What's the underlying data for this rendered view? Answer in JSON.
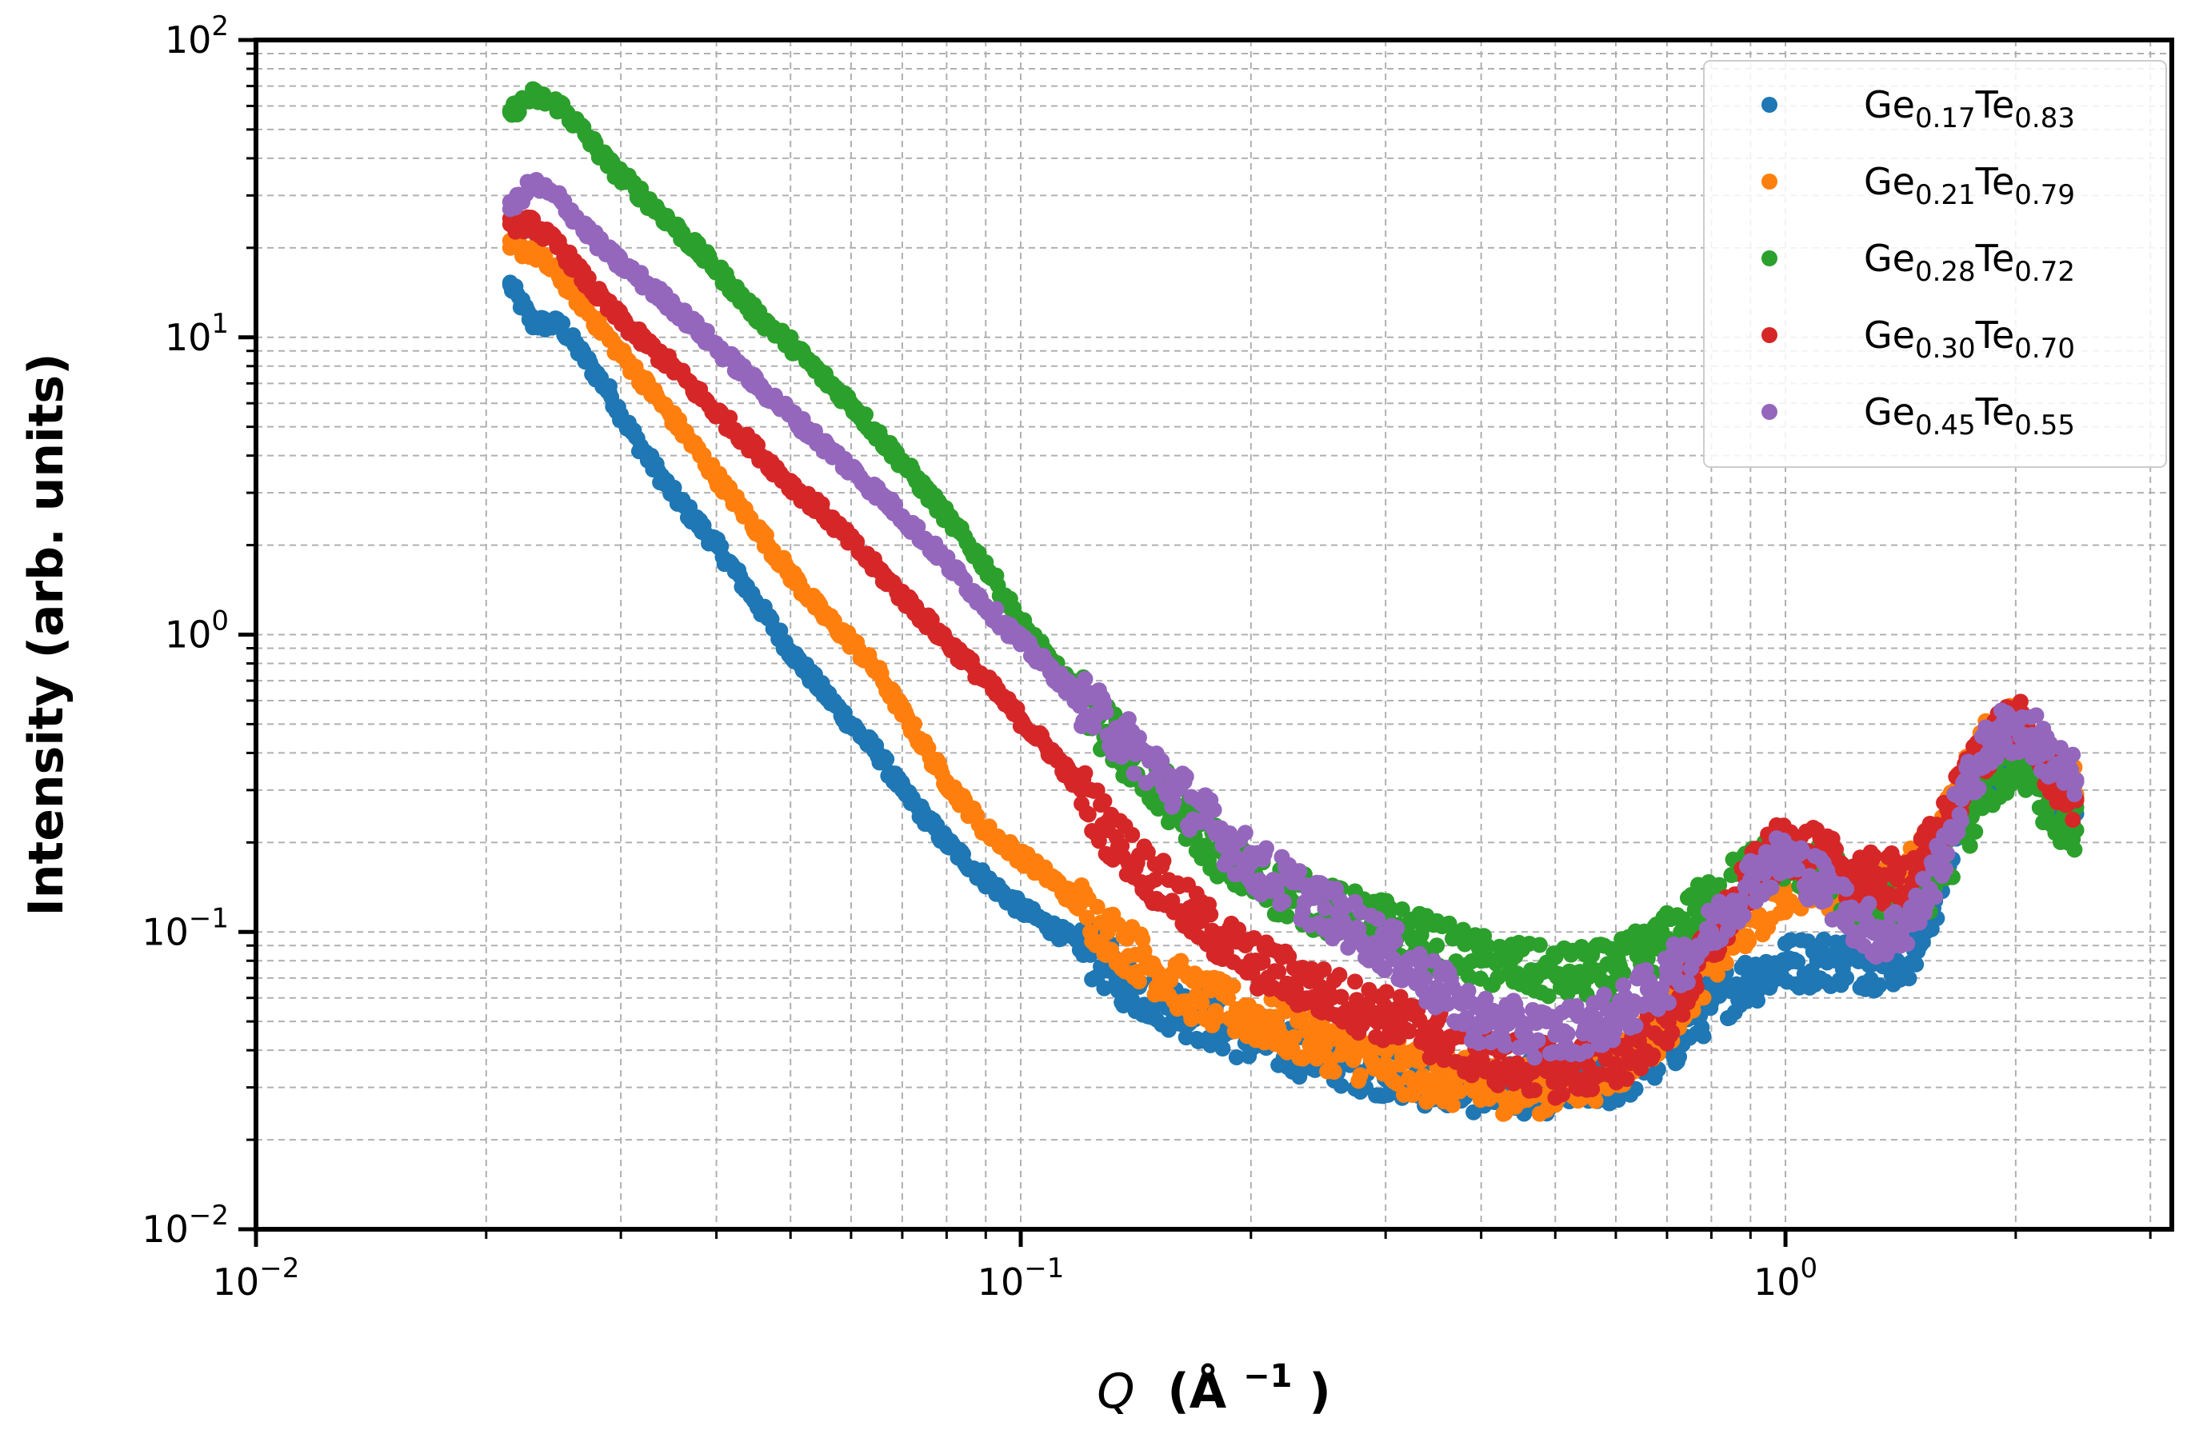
{
  "chart_data": {
    "type": "scatter",
    "x_scale": "log",
    "y_scale": "log",
    "xlim": [
      0.01,
      3.2
    ],
    "ylim": [
      0.01,
      100
    ],
    "grid": true,
    "legend_position": "top-right",
    "xlabel": {
      "symbol": "Q",
      "unit": "(Å",
      "sup": "−1",
      "close": ")"
    },
    "ylabel": "Intensity (arb. units)",
    "x_ticks": [
      {
        "value": 0.01,
        "base": "10",
        "exp": "−2"
      },
      {
        "value": 0.1,
        "base": "10",
        "exp": "−1"
      },
      {
        "value": 1,
        "base": "10",
        "exp": "0"
      }
    ],
    "y_ticks": [
      {
        "value": 0.01,
        "base": "10",
        "exp": "−2"
      },
      {
        "value": 0.1,
        "base": "10",
        "exp": "−1"
      },
      {
        "value": 1,
        "base": "10",
        "exp": "0"
      },
      {
        "value": 10,
        "base": "10",
        "exp": "1"
      },
      {
        "value": 100,
        "base": "10",
        "exp": "2"
      }
    ],
    "series": [
      {
        "legend": {
          "a": "Ge",
          "as": "0.17",
          "b": "Te",
          "bs": "0.83"
        },
        "color": "#1f77b4",
        "points": [
          [
            0.0215,
            15
          ],
          [
            0.023,
            11.2
          ],
          [
            0.025,
            11
          ],
          [
            0.027,
            8.4
          ],
          [
            0.029,
            6.5
          ],
          [
            0.03,
            5.5
          ],
          [
            0.032,
            4.2
          ],
          [
            0.035,
            3.0
          ],
          [
            0.04,
            2.0
          ],
          [
            0.045,
            1.3
          ],
          [
            0.05,
            0.88
          ],
          [
            0.055,
            0.65
          ],
          [
            0.06,
            0.5
          ],
          [
            0.065,
            0.4
          ],
          [
            0.07,
            0.3
          ],
          [
            0.08,
            0.2
          ],
          [
            0.09,
            0.15
          ],
          [
            0.1,
            0.12
          ],
          [
            0.12,
            0.09
          ],
          [
            0.14,
            0.065
          ],
          [
            0.17,
            0.052
          ],
          [
            0.2,
            0.044
          ],
          [
            0.25,
            0.038
          ],
          [
            0.3,
            0.034
          ],
          [
            0.35,
            0.031
          ],
          [
            0.4,
            0.03
          ],
          [
            0.5,
            0.03
          ],
          [
            0.6,
            0.032
          ],
          [
            0.7,
            0.04
          ],
          [
            0.8,
            0.058
          ],
          [
            0.9,
            0.07
          ],
          [
            1.0,
            0.078
          ],
          [
            1.1,
            0.08
          ],
          [
            1.2,
            0.08
          ],
          [
            1.3,
            0.078
          ],
          [
            1.4,
            0.08
          ],
          [
            1.5,
            0.09
          ],
          [
            1.6,
            0.15
          ],
          [
            1.7,
            0.25
          ],
          [
            1.8,
            0.32
          ],
          [
            1.9,
            0.37
          ],
          [
            2.0,
            0.4
          ],
          [
            2.1,
            0.38
          ],
          [
            2.2,
            0.32
          ],
          [
            2.3,
            0.28
          ],
          [
            2.4,
            0.25
          ]
        ]
      },
      {
        "legend": {
          "a": "Ge",
          "as": "0.21",
          "b": "Te",
          "bs": "0.79"
        },
        "color": "#ff7f0e",
        "points": [
          [
            0.0215,
            20
          ],
          [
            0.023,
            19.5
          ],
          [
            0.025,
            16
          ],
          [
            0.027,
            12.5
          ],
          [
            0.029,
            9.8
          ],
          [
            0.032,
            7.2
          ],
          [
            0.035,
            5.4
          ],
          [
            0.04,
            3.4
          ],
          [
            0.045,
            2.3
          ],
          [
            0.05,
            1.6
          ],
          [
            0.055,
            1.18
          ],
          [
            0.06,
            0.95
          ],
          [
            0.065,
            0.75
          ],
          [
            0.07,
            0.55
          ],
          [
            0.08,
            0.32
          ],
          [
            0.09,
            0.22
          ],
          [
            0.1,
            0.18
          ],
          [
            0.11,
            0.15
          ],
          [
            0.13,
            0.1
          ],
          [
            0.15,
            0.075
          ],
          [
            0.17,
            0.06
          ],
          [
            0.2,
            0.052
          ],
          [
            0.25,
            0.042
          ],
          [
            0.3,
            0.036
          ],
          [
            0.35,
            0.032
          ],
          [
            0.4,
            0.03
          ],
          [
            0.5,
            0.03
          ],
          [
            0.6,
            0.035
          ],
          [
            0.7,
            0.05
          ],
          [
            0.8,
            0.08
          ],
          [
            0.9,
            0.11
          ],
          [
            1.0,
            0.14
          ],
          [
            1.1,
            0.15
          ],
          [
            1.2,
            0.14
          ],
          [
            1.3,
            0.13
          ],
          [
            1.4,
            0.14
          ],
          [
            1.5,
            0.17
          ],
          [
            1.6,
            0.22
          ],
          [
            1.7,
            0.3
          ],
          [
            1.8,
            0.4
          ],
          [
            1.9,
            0.47
          ],
          [
            2.0,
            0.5
          ],
          [
            2.1,
            0.46
          ],
          [
            2.2,
            0.38
          ],
          [
            2.3,
            0.32
          ],
          [
            2.4,
            0.29
          ]
        ]
      },
      {
        "legend": {
          "a": "Ge",
          "as": "0.28",
          "b": "Te",
          "bs": "0.72"
        },
        "color": "#2ca02c",
        "points": [
          [
            0.0215,
            57
          ],
          [
            0.023,
            65
          ],
          [
            0.025,
            60
          ],
          [
            0.027,
            48
          ],
          [
            0.029,
            38
          ],
          [
            0.032,
            30
          ],
          [
            0.035,
            24
          ],
          [
            0.04,
            17
          ],
          [
            0.045,
            12
          ],
          [
            0.05,
            9.5
          ],
          [
            0.055,
            7.4
          ],
          [
            0.06,
            6.0
          ],
          [
            0.065,
            4.7
          ],
          [
            0.07,
            3.8
          ],
          [
            0.08,
            2.5
          ],
          [
            0.09,
            1.7
          ],
          [
            0.1,
            1.1
          ],
          [
            0.11,
            0.8
          ],
          [
            0.12,
            0.6
          ],
          [
            0.14,
            0.38
          ],
          [
            0.16,
            0.26
          ],
          [
            0.18,
            0.19
          ],
          [
            0.2,
            0.15
          ],
          [
            0.25,
            0.12
          ],
          [
            0.3,
            0.105
          ],
          [
            0.35,
            0.09
          ],
          [
            0.4,
            0.08
          ],
          [
            0.5,
            0.072
          ],
          [
            0.6,
            0.075
          ],
          [
            0.7,
            0.095
          ],
          [
            0.8,
            0.13
          ],
          [
            0.9,
            0.16
          ],
          [
            1.0,
            0.18
          ],
          [
            1.1,
            0.16
          ],
          [
            1.2,
            0.14
          ],
          [
            1.3,
            0.12
          ],
          [
            1.4,
            0.12
          ],
          [
            1.5,
            0.13
          ],
          [
            1.6,
            0.16
          ],
          [
            1.7,
            0.21
          ],
          [
            1.8,
            0.28
          ],
          [
            1.9,
            0.34
          ],
          [
            2.0,
            0.37
          ],
          [
            2.1,
            0.33
          ],
          [
            2.2,
            0.27
          ],
          [
            2.3,
            0.24
          ],
          [
            2.4,
            0.22
          ]
        ]
      },
      {
        "legend": {
          "a": "Ge",
          "as": "0.30",
          "b": "Te",
          "bs": "0.70"
        },
        "color": "#d62728",
        "points": [
          [
            0.0215,
            24
          ],
          [
            0.023,
            24
          ],
          [
            0.025,
            20
          ],
          [
            0.027,
            15.5
          ],
          [
            0.029,
            12.5
          ],
          [
            0.032,
            9.8
          ],
          [
            0.035,
            8.0
          ],
          [
            0.04,
            5.6
          ],
          [
            0.045,
            4.2
          ],
          [
            0.05,
            3.2
          ],
          [
            0.055,
            2.6
          ],
          [
            0.06,
            2.05
          ],
          [
            0.065,
            1.65
          ],
          [
            0.07,
            1.35
          ],
          [
            0.08,
            0.95
          ],
          [
            0.09,
            0.7
          ],
          [
            0.1,
            0.52
          ],
          [
            0.11,
            0.4
          ],
          [
            0.12,
            0.3
          ],
          [
            0.13,
            0.22
          ],
          [
            0.15,
            0.15
          ],
          [
            0.17,
            0.11
          ],
          [
            0.2,
            0.08
          ],
          [
            0.25,
            0.062
          ],
          [
            0.3,
            0.052
          ],
          [
            0.35,
            0.045
          ],
          [
            0.4,
            0.038
          ],
          [
            0.5,
            0.034
          ],
          [
            0.6,
            0.036
          ],
          [
            0.7,
            0.05
          ],
          [
            0.8,
            0.09
          ],
          [
            0.9,
            0.15
          ],
          [
            1.0,
            0.2
          ],
          [
            1.1,
            0.18
          ],
          [
            1.2,
            0.16
          ],
          [
            1.3,
            0.15
          ],
          [
            1.4,
            0.15
          ],
          [
            1.5,
            0.17
          ],
          [
            1.6,
            0.22
          ],
          [
            1.7,
            0.3
          ],
          [
            1.8,
            0.4
          ],
          [
            1.9,
            0.47
          ],
          [
            2.0,
            0.5
          ],
          [
            2.1,
            0.45
          ],
          [
            2.2,
            0.36
          ],
          [
            2.3,
            0.31
          ],
          [
            2.4,
            0.28
          ]
        ]
      },
      {
        "legend": {
          "a": "Ge",
          "as": "0.45",
          "b": "Te",
          "bs": "0.55"
        },
        "color": "#9467bd",
        "points": [
          [
            0.0215,
            27
          ],
          [
            0.023,
            33
          ],
          [
            0.025,
            29
          ],
          [
            0.027,
            23
          ],
          [
            0.029,
            19
          ],
          [
            0.032,
            15.5
          ],
          [
            0.035,
            12.8
          ],
          [
            0.04,
            9.3
          ],
          [
            0.045,
            7.0
          ],
          [
            0.05,
            5.5
          ],
          [
            0.055,
            4.4
          ],
          [
            0.06,
            3.6
          ],
          [
            0.065,
            3.0
          ],
          [
            0.07,
            2.5
          ],
          [
            0.08,
            1.75
          ],
          [
            0.09,
            1.25
          ],
          [
            0.1,
            0.95
          ],
          [
            0.11,
            0.75
          ],
          [
            0.12,
            0.6
          ],
          [
            0.14,
            0.42
          ],
          [
            0.16,
            0.3
          ],
          [
            0.18,
            0.22
          ],
          [
            0.2,
            0.17
          ],
          [
            0.25,
            0.12
          ],
          [
            0.3,
            0.09
          ],
          [
            0.35,
            0.065
          ],
          [
            0.4,
            0.05
          ],
          [
            0.5,
            0.045
          ],
          [
            0.6,
            0.052
          ],
          [
            0.7,
            0.07
          ],
          [
            0.8,
            0.1
          ],
          [
            0.9,
            0.15
          ],
          [
            1.0,
            0.18
          ],
          [
            1.1,
            0.15
          ],
          [
            1.2,
            0.12
          ],
          [
            1.3,
            0.1
          ],
          [
            1.4,
            0.1
          ],
          [
            1.5,
            0.12
          ],
          [
            1.6,
            0.18
          ],
          [
            1.7,
            0.28
          ],
          [
            1.8,
            0.38
          ],
          [
            1.9,
            0.46
          ],
          [
            2.0,
            0.48
          ],
          [
            2.1,
            0.46
          ],
          [
            2.2,
            0.4
          ],
          [
            2.3,
            0.35
          ],
          [
            2.4,
            0.32
          ]
        ]
      }
    ]
  }
}
